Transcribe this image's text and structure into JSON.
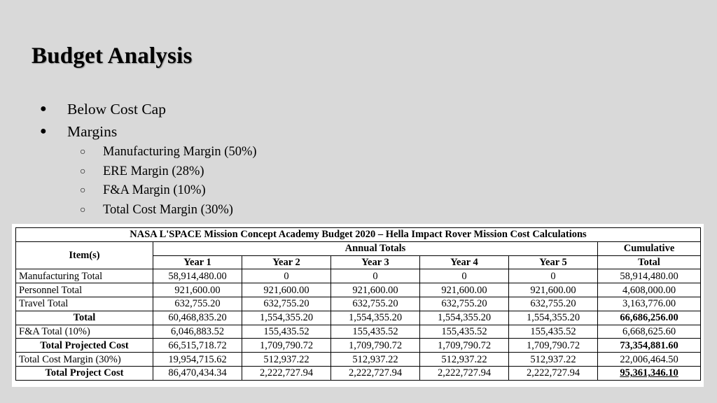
{
  "slide": {
    "title": "Budget Analysis",
    "bullets": [
      "Below Cost Cap",
      "Margins"
    ],
    "sub_bullets": [
      "Manufacturing Margin (50%)",
      "ERE Margin (28%)",
      "F&A Margin (10%)",
      "Total Cost Margin (30%)"
    ],
    "bullet_glyph": "●",
    "sub_bullet_glyph": "○"
  },
  "table": {
    "caption": "NASA L'SPACE Mission Concept Academy Budget 2020 – Hella Impact Rover Mission Cost Calculations",
    "item_header": "Item(s)",
    "annual_header": "Annual Totals",
    "cumulative_header": "Cumulative",
    "cumulative_subheader": "Total",
    "years": [
      "Year 1",
      "Year 2",
      "Year 3",
      "Year 4",
      "Year 5"
    ],
    "rows": [
      {
        "label": "Manufacturing Total",
        "values": [
          "58,914,480.00",
          "0",
          "0",
          "0",
          "0"
        ],
        "cumulative": "58,914,480.00"
      },
      {
        "label": "Personnel Total",
        "values": [
          "921,600.00",
          "921,600.00",
          "921,600.00",
          "921,600.00",
          "921,600.00"
        ],
        "cumulative": "4,608,000.00"
      },
      {
        "label": "Travel Total",
        "values": [
          "632,755.20",
          "632,755.20",
          "632,755.20",
          "632,755.20",
          "632,755.20"
        ],
        "cumulative": "3,163,776.00"
      },
      {
        "label": "Total",
        "values": [
          "60,468,835.20",
          "1,554,355.20",
          "1,554,355.20",
          "1,554,355.20",
          "1,554,355.20"
        ],
        "cumulative": "66,686,256.00"
      },
      {
        "label": "F&A Total (10%)",
        "values": [
          "6,046,883.52",
          "155,435.52",
          "155,435.52",
          "155,435.52",
          "155,435.52"
        ],
        "cumulative": "6,668,625.60"
      },
      {
        "label": "Total Projected Cost",
        "values": [
          "66,515,718.72",
          "1,709,790.72",
          "1,709,790.72",
          "1,709,790.72",
          "1,709,790.72"
        ],
        "cumulative": "73,354,881.60"
      },
      {
        "label": "Total Cost Margin (30%)",
        "values": [
          "19,954,715.62",
          "512,937.22",
          "512,937.22",
          "512,937.22",
          "512,937.22"
        ],
        "cumulative": "22,006,464.50"
      },
      {
        "label": "Total Project Cost",
        "values": [
          "86,470,434.34",
          "2,222,727.94",
          "2,222,727.94",
          "2,222,727.94",
          "2,222,727.94"
        ],
        "cumulative": "95,361,346.10"
      }
    ]
  }
}
